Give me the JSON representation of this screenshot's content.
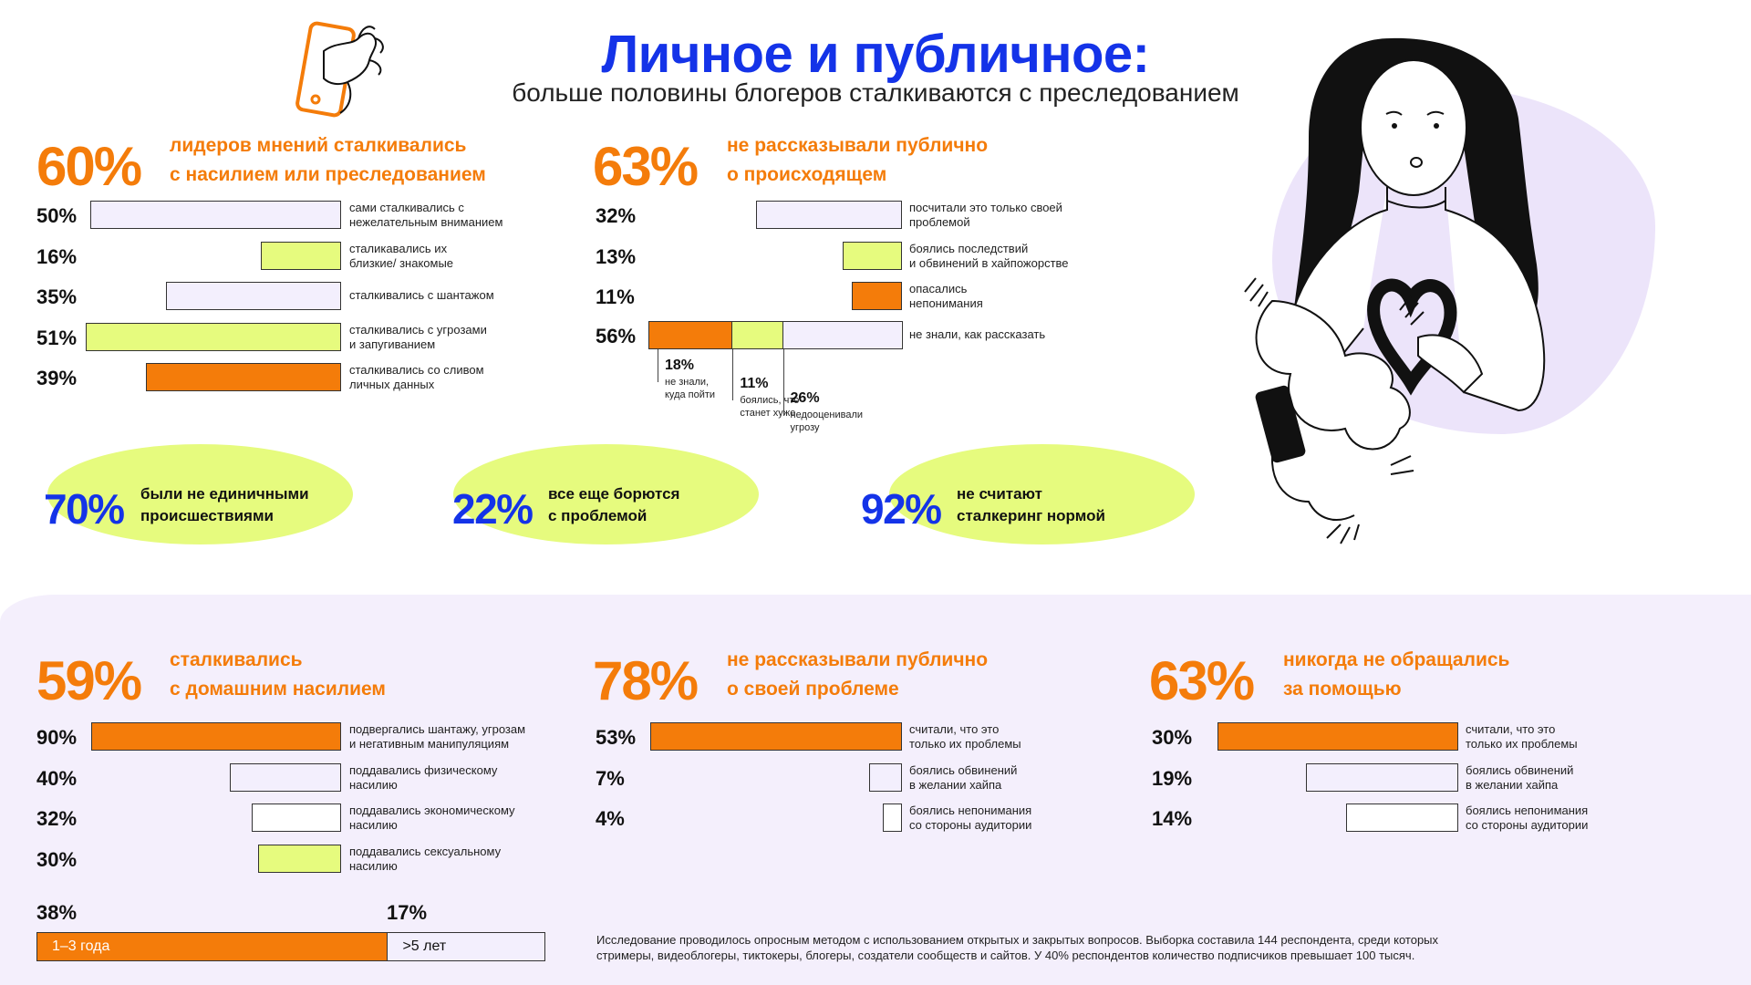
{
  "title": "Личное и публичное:",
  "subtitle": "больше половины блогеров сталкиваются с преследованием",
  "colors": {
    "blue": "#1433e8",
    "orange": "#f47c0a",
    "lime": "#e6fb7e",
    "lavender": "#f3effd",
    "white": "#ffffff"
  },
  "icons": {
    "phone_hand": "phone-in-hand-icon",
    "girl": "girl-illustration"
  },
  "chart_data": [
    {
      "type": "bar",
      "headline_value": "60%",
      "headline_text": [
        "лидеров мнений сталкивались",
        "с насилием или преследованием"
      ],
      "rows": [
        {
          "value": 50,
          "label": "50%",
          "color": "lavender",
          "text": [
            "сами сталкивались с",
            "нежелательным вниманием"
          ]
        },
        {
          "value": 16,
          "label": "16%",
          "color": "lime",
          "text": [
            "сталикавались их",
            "близкие/ знакомые"
          ]
        },
        {
          "value": 35,
          "label": "35%",
          "color": "lavender",
          "text": [
            "сталкивались с шантажом"
          ]
        },
        {
          "value": 51,
          "label": "51%",
          "color": "lime",
          "text": [
            "сталкивались с угрозами",
            "и запугиванием"
          ]
        },
        {
          "value": 39,
          "label": "39%",
          "color": "orange",
          "text": [
            "сталкивались со сливом",
            "личных данных"
          ]
        }
      ]
    },
    {
      "type": "bar",
      "headline_value": "63%",
      "headline_text": [
        "не рассказывали публично",
        "о происходящем"
      ],
      "rows": [
        {
          "value": 32,
          "label": "32%",
          "color": "lavender",
          "text": [
            "посчитали это только своей",
            "проблемой"
          ]
        },
        {
          "value": 13,
          "label": "13%",
          "color": "lime",
          "text": [
            "боялись последствий",
            "и обвинений в хайпожорстве"
          ]
        },
        {
          "value": 11,
          "label": "11%",
          "color": "orange",
          "text": [
            "опасались",
            "непонимания"
          ]
        }
      ],
      "stacked": {
        "value": 56,
        "label": "56%",
        "text": [
          "не знали, как рассказать"
        ],
        "segments": [
          {
            "value": 18,
            "label": "18%",
            "color": "orange",
            "text": [
              "не знали,",
              "куда пойти"
            ]
          },
          {
            "value": 11,
            "label": "11%",
            "color": "lime",
            "text": [
              "боялись, что",
              "станет хуже"
            ]
          },
          {
            "value": 26,
            "label": "26%",
            "color": "lavender",
            "text": [
              "недооценивали",
              "угрозу"
            ]
          }
        ]
      }
    },
    {
      "type": "bar",
      "headline_value": "59%",
      "headline_text": [
        "сталкивались",
        "с домашним насилием"
      ],
      "rows": [
        {
          "value": 90,
          "label": "90%",
          "color": "orange",
          "text": [
            "подвергались шантажу, угрозам",
            "и негативным манипуляциям"
          ]
        },
        {
          "value": 40,
          "label": "40%",
          "color": "lavender",
          "text": [
            "поддавались физическому",
            "насилию"
          ]
        },
        {
          "value": 32,
          "label": "32%",
          "color": "white",
          "text": [
            "поддавались экономическому",
            "насилию"
          ]
        },
        {
          "value": 30,
          "label": "30%",
          "color": "lime",
          "text": [
            "поддавались сексуальному",
            "насилию"
          ]
        }
      ],
      "duration": {
        "segments": [
          {
            "value": 38,
            "label": "38%",
            "text": "1–3 года",
            "color": "orange"
          },
          {
            "value": 17,
            "label": "17%",
            "text": ">5 лет",
            "color": "lavender"
          }
        ]
      }
    },
    {
      "type": "bar",
      "headline_value": "78%",
      "headline_text": [
        "не рассказывали публично",
        "о своей проблеме"
      ],
      "rows": [
        {
          "value": 53,
          "label": "53%",
          "color": "orange",
          "text": [
            "считали, что это",
            "только их проблемы"
          ]
        },
        {
          "value": 7,
          "label": "7%",
          "color": "lavender",
          "text": [
            "боялись обвинений",
            "в желании хайпа"
          ]
        },
        {
          "value": 4,
          "label": "4%",
          "color": "white",
          "text": [
            "боялись непонимания",
            "со стороны аудитории"
          ]
        }
      ]
    },
    {
      "type": "bar",
      "headline_value": "63%",
      "headline_text": [
        "никогда не обращались",
        "за помощью"
      ],
      "rows": [
        {
          "value": 30,
          "label": "30%",
          "color": "orange",
          "text": [
            "считали, что это",
            "только их проблемы"
          ]
        },
        {
          "value": 19,
          "label": "19%",
          "color": "lavender",
          "text": [
            "боялись обвинений",
            "в желании хайпа"
          ]
        },
        {
          "value": 14,
          "label": "14%",
          "color": "white",
          "text": [
            "боялись непонимания",
            "со стороны аудитории"
          ]
        }
      ]
    }
  ],
  "highlights": [
    {
      "value": "70%",
      "text": [
        "были не единичными",
        "происшествиями"
      ]
    },
    {
      "value": "22%",
      "text": [
        "все еще борются",
        "с проблемой"
      ]
    },
    {
      "value": "92%",
      "text": [
        "не считают",
        "сталкеринг нормой"
      ]
    }
  ],
  "footnote": [
    "Исследование проводилось опросным методом с использованием открытых и закрытых вопросов. Выборка составила 144 респондента, среди которых",
    "стримеры, видеоблогеры, тиктокеры, блогеры, создатели сообществ и сайтов. У 40% респондентов количество подписчиков превышает 100 тысяч."
  ]
}
